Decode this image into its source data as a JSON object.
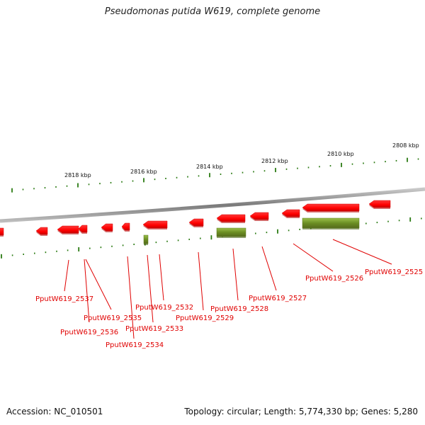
{
  "title": "Pseudomonas putida W619, complete genome",
  "footer": {
    "accession": "Accession: NC_010501",
    "summary": "Topology: circular; Length: 5,774,330 bp; Genes: 5,280"
  },
  "colors": {
    "forward_gene": "#ff0000",
    "rna_gene": "#6b8e23",
    "backbone": "#888888",
    "tick": "#2a7a12",
    "label": "#e00000"
  },
  "scale_labels": [
    "2818 kbp",
    "2816 kbp",
    "2814 kbp",
    "2812 kbp",
    "2810 kbp",
    "2808 kbp"
  ],
  "gene_labels": [
    "PputW619_2537",
    "PputW619_2536",
    "PputW619_2535",
    "PputW619_2534",
    "PputW619_2533",
    "PputW619_2532",
    "PputW619_2529",
    "PputW619_2528",
    "PputW619_2527",
    "PputW619_2526",
    "PputW619_2525"
  ]
}
